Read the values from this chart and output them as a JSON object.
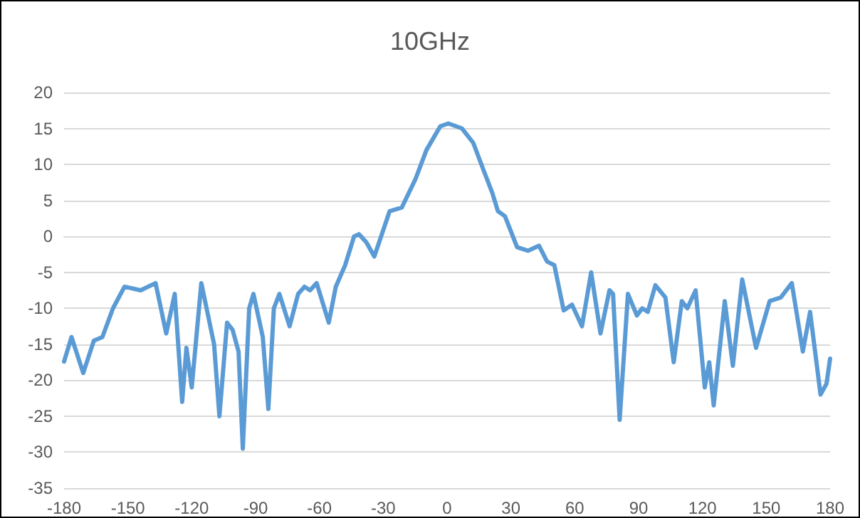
{
  "chart_data": {
    "type": "line",
    "title": "10GHz",
    "x": [
      -180,
      -176.5,
      -171,
      -166,
      -162,
      -157,
      -151.6,
      -144,
      -137,
      -132,
      -128,
      -124.5,
      -122.5,
      -120,
      -115.5,
      -109.5,
      -107,
      -103.4,
      -100.8,
      -98,
      -96,
      -93,
      -91,
      -86.6,
      -84,
      -81.4,
      -78.8,
      -74,
      -70,
      -67,
      -64.4,
      -61.3,
      -55.6,
      -52.3,
      -47.9,
      -43.7,
      -41.4,
      -38,
      -34.2,
      -27,
      -21.3,
      -14.8,
      -9.7,
      -3.2,
      0.6,
      7,
      12.3,
      17.4,
      21.3,
      23.9,
      27.2,
      32.9,
      38,
      43.2,
      47,
      50.4,
      54.8,
      58.7,
      63.4,
      67.7,
      72.1,
      76.3,
      78,
      81.1,
      85,
      89.2,
      91.7,
      94.3,
      97.9,
      102.6,
      106.5,
      110.3,
      112.9,
      116.8,
      121.1,
      123.2,
      125.3,
      130.5,
      134.3,
      138.7,
      145.2,
      151.6,
      156.8,
      162,
      167.2,
      170.6,
      175.5,
      178.3,
      180
    ],
    "series": [
      {
        "color": "#5b9bd5",
        "values": [
          -17.4,
          -14,
          -19,
          -14.5,
          -14,
          -10,
          -7,
          -7.5,
          -6.5,
          -13.5,
          -8,
          -23,
          -15.5,
          -21,
          -6.5,
          -15,
          -25,
          -12,
          -13,
          -16,
          -29.5,
          -10,
          -8,
          -14,
          -24,
          -10,
          -8,
          -12.5,
          -8,
          -7,
          -7.5,
          -6.5,
          -12,
          -7,
          -4,
          0,
          0.3,
          -0.8,
          -2.8,
          3.5,
          4,
          8,
          12,
          15.3,
          15.7,
          15,
          13,
          9,
          6,
          3.5,
          2.8,
          -1.5,
          -2,
          -1.3,
          -3.5,
          -4,
          -10.3,
          -9.5,
          -12.5,
          -5,
          -13.5,
          -7.5,
          -8,
          -25.5,
          -8,
          -11,
          -10,
          -10.5,
          -6.8,
          -8.5,
          -17.5,
          -9,
          -10,
          -7.5,
          -21,
          -17.5,
          -23.5,
          -9,
          -18,
          -6,
          -15.5,
          -9,
          -8.5,
          -6.5,
          -16,
          -10.5,
          -22,
          -20.5,
          -17
        ]
      }
    ],
    "xlim": [
      -180,
      180
    ],
    "xticks": [
      -180,
      -150,
      -120,
      -90,
      -60,
      -30,
      0,
      30,
      60,
      90,
      120,
      150,
      180
    ],
    "ylim": [
      -35,
      20
    ],
    "yticks": [
      -35,
      -30,
      -25,
      -20,
      -15,
      -10,
      -5,
      0,
      5,
      10,
      15,
      20
    ],
    "grid": "y",
    "marker": "none",
    "line_style": "solid"
  }
}
